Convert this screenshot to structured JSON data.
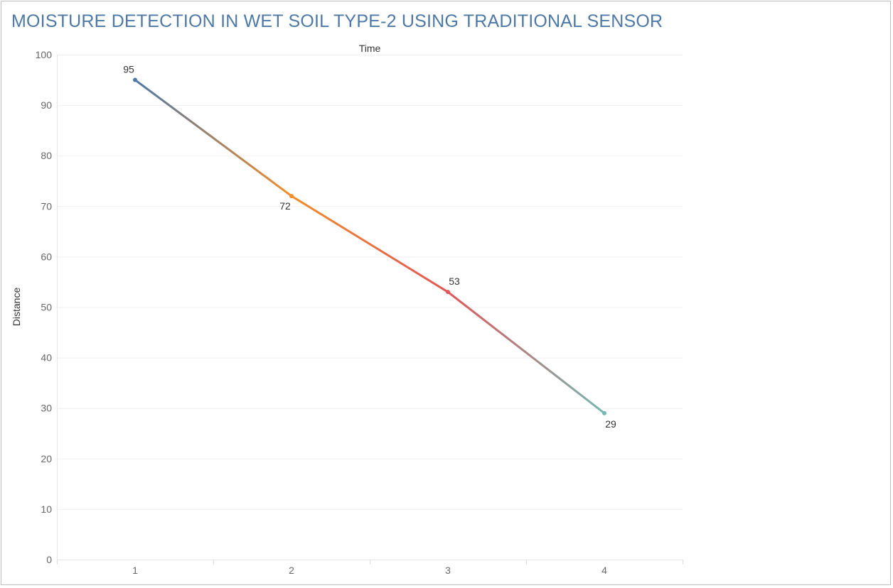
{
  "chart_data": {
    "type": "line",
    "title": "MOISTURE DETECTION IN WET SOIL TYPE-2  USING TRADITIONAL SENSOR",
    "xlabel": "Time",
    "ylabel": "Distance",
    "x": [
      1,
      2,
      3,
      4
    ],
    "y": [
      95,
      72,
      53,
      29
    ],
    "data_labels": [
      "95",
      "72",
      "53",
      "29"
    ],
    "ylim": [
      0,
      100
    ],
    "y_ticks": [
      0,
      10,
      20,
      30,
      40,
      50,
      60,
      70,
      80,
      90,
      100
    ],
    "x_ticks": [
      1,
      2,
      3,
      4
    ],
    "grid": true,
    "point_colors": [
      "#4e79a7",
      "#f28e2b",
      "#e15759",
      "#76b7b2"
    ],
    "title_color": "#4e79a7"
  }
}
